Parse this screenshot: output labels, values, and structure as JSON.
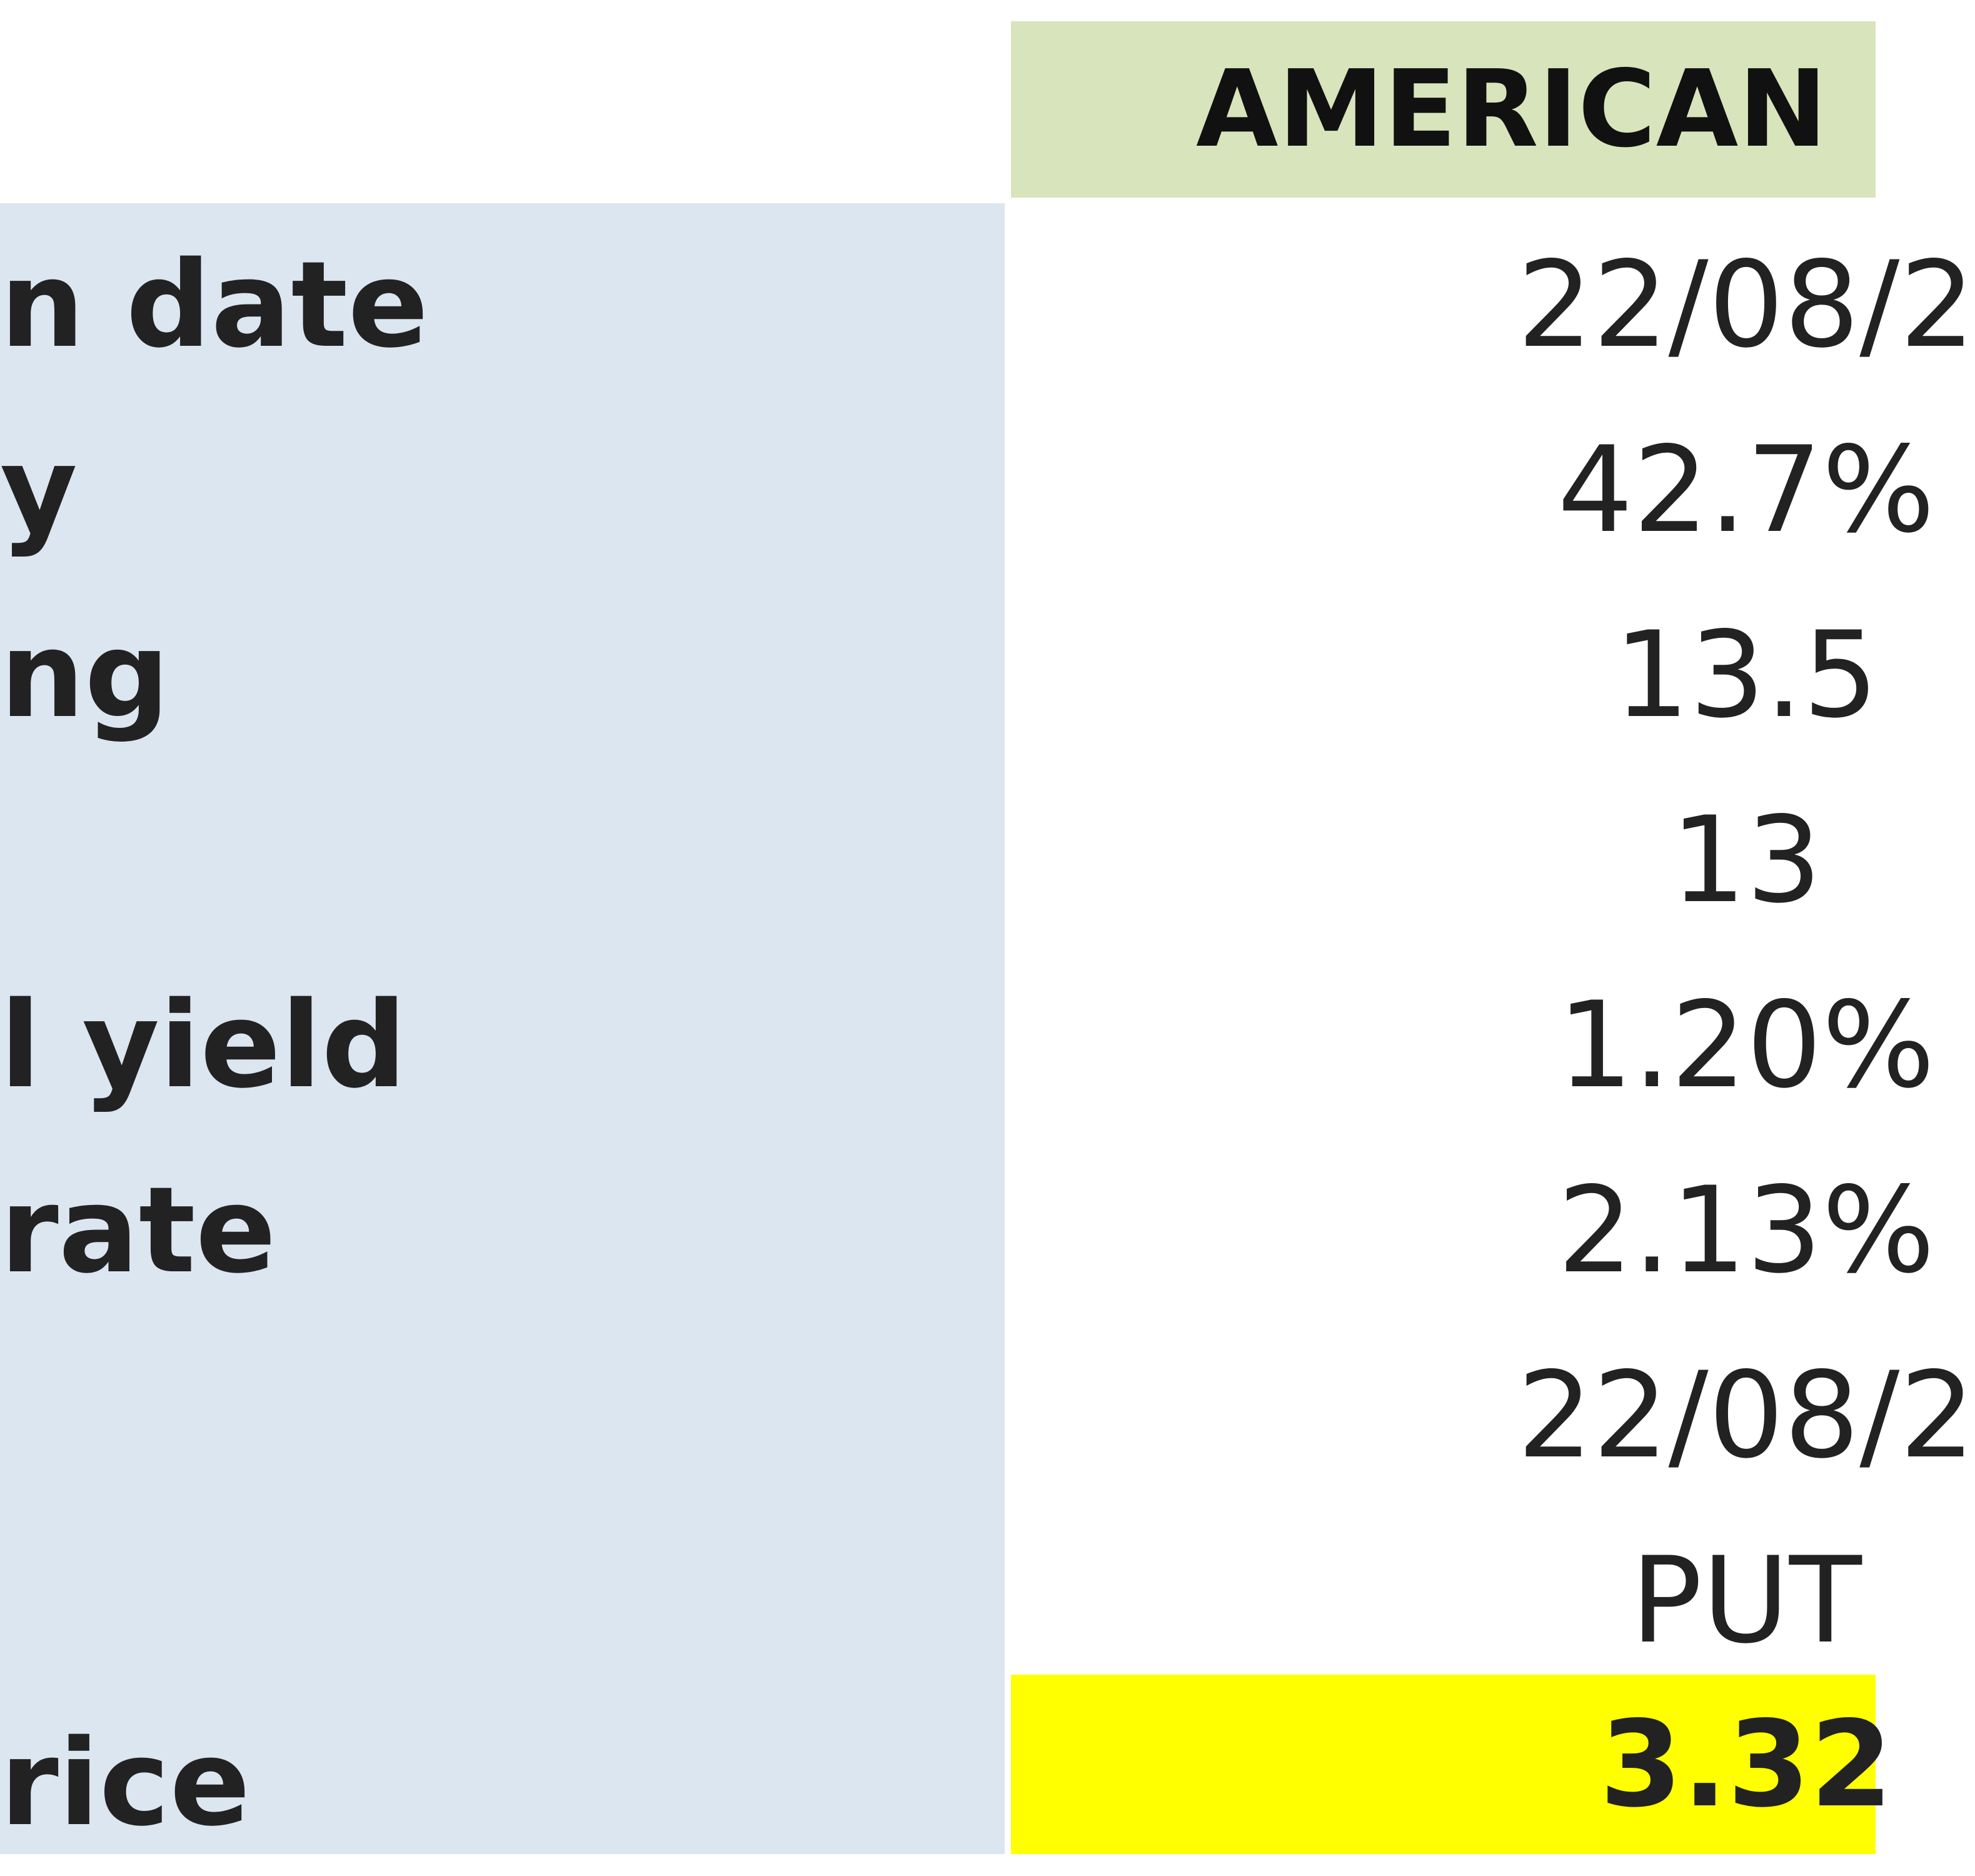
{
  "table": {
    "header": "AMERICAN",
    "rows": [
      [
        "n date",
        "22/08/2"
      ],
      [
        "y",
        "42.7%"
      ],
      [
        "ng",
        "13.5"
      ],
      [
        "",
        "13"
      ],
      [
        "l yield",
        "1.20%"
      ],
      [
        "rate",
        "2.13%"
      ],
      [
        "",
        "22/08/2"
      ],
      [
        "",
        "PUT"
      ],
      [
        "rice",
        "3.32"
      ]
    ]
  }
}
